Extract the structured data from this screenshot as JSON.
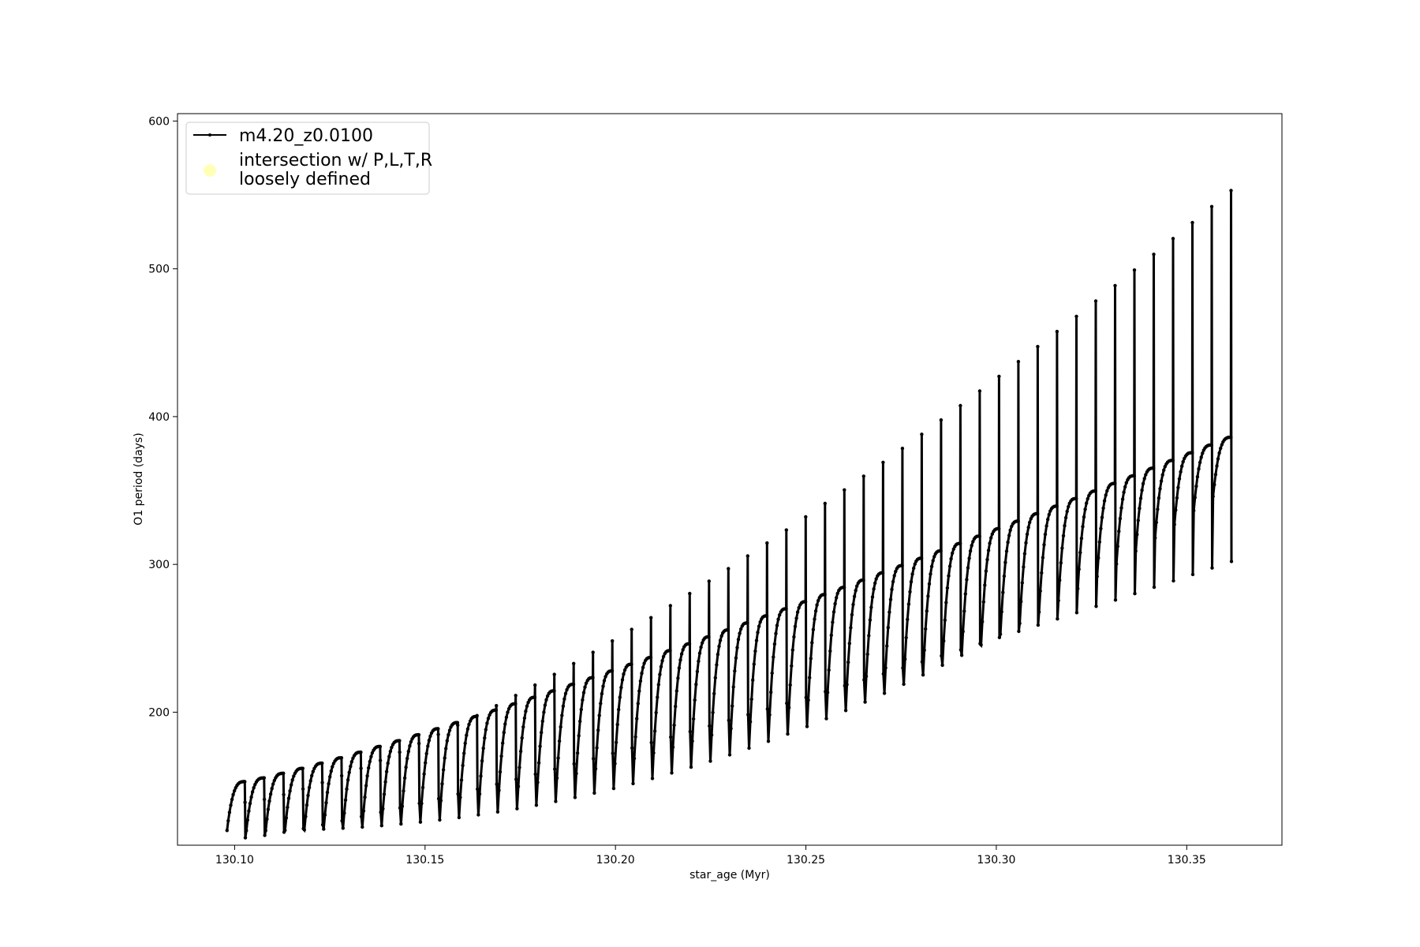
{
  "chart_data": {
    "type": "line",
    "title": "",
    "xlabel": "star_age (Myr)",
    "ylabel": "O1 period (days)",
    "xlim": [
      130.085,
      130.375
    ],
    "ylim": [
      110,
      605
    ],
    "x_ticks": [
      130.1,
      130.15,
      130.2,
      130.25,
      130.3,
      130.35
    ],
    "x_tick_labels": [
      "130.10",
      "130.15",
      "130.20",
      "130.25",
      "130.30",
      "130.35"
    ],
    "y_ticks": [
      200,
      300,
      400,
      500,
      600
    ],
    "y_tick_labels": [
      "200",
      "300",
      "400",
      "500",
      "600"
    ],
    "grid": false,
    "legend_position": "top-left",
    "series": [
      {
        "name": "m4.20_z0.0100",
        "color": "#000000",
        "marker": "point",
        "description_cycles": {
          "start_age": 130.098,
          "end_age": 130.362,
          "cycle_count": 52,
          "plateau_first": 153,
          "plateau_last": 386,
          "spike_first": 139,
          "spike_last": 553,
          "trough_first": 115,
          "trough_last": 302
        }
      },
      {
        "name": "intersection w/ P,L,T,R\nloosely defined",
        "color": "#ffffb0",
        "marker": "circle",
        "points": []
      }
    ]
  },
  "legend": {
    "entries": [
      {
        "label": "m4.20_z0.0100",
        "lines": [
          "m4.20_z0.0100"
        ]
      },
      {
        "label": "intersection w/ P,L,T,R\nloosely defined",
        "lines": [
          "intersection w/ P,L,T,R",
          "loosely defined"
        ]
      }
    ]
  }
}
